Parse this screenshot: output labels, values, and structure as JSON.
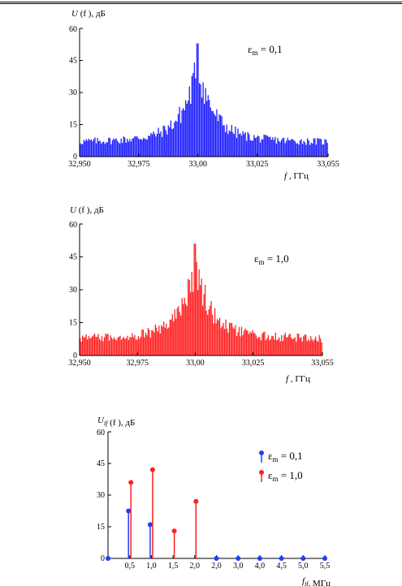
{
  "chart_data": [
    {
      "type": "bar",
      "ylabel": "U(f), дБ",
      "xlabel": "f, ГГц",
      "xlim": [
        32.95,
        33.055
      ],
      "ylim": [
        0,
        60
      ],
      "xticks": [
        "32,950",
        "32,975",
        "33,00",
        "33,025",
        "33,055"
      ],
      "yticks": [
        "0",
        "15",
        "30",
        "45",
        "60"
      ],
      "series": [
        {
          "color": "#1f1fff",
          "peak_x": 33.0,
          "peak_y": 53,
          "floor_y": 7,
          "bins": 200
        }
      ],
      "annotation": "ε_m = 0,1"
    },
    {
      "type": "bar",
      "ylabel": "U(f), дБ",
      "xlabel": "f, ГГц",
      "xlim": [
        32.95,
        33.055
      ],
      "ylim": [
        0,
        60
      ],
      "xticks": [
        "32,950",
        "32,975",
        "33,00",
        "33,025",
        "33,055"
      ],
      "yticks": [
        "0",
        "15",
        "30",
        "45",
        "60"
      ],
      "series": [
        {
          "color": "#ff2020",
          "peak_x": 33.0,
          "peak_y": 51,
          "floor_y": 8,
          "bins": 200
        }
      ],
      "annotation": "ε_m = 1,0"
    },
    {
      "type": "scatter",
      "ylabel": "U_if(f), дБ",
      "xlabel": "f_if, МГц",
      "ylim": [
        0,
        60
      ],
      "categories": [
        "",
        "0,5",
        "1,0",
        "1,5",
        "2,0",
        "2,0",
        "3,0",
        "4,0",
        "4,5",
        "5,0",
        "5,5"
      ],
      "yticks": [
        "0",
        "15",
        "30",
        "45",
        "60"
      ],
      "series": [
        {
          "name": "ε_m = 0,1",
          "color": "#1f3fff",
          "values": [
            0,
            22.5,
            16,
            null,
            null,
            0,
            0,
            0,
            0,
            0,
            0
          ]
        },
        {
          "name": "ε_m = 1,0",
          "color": "#ff2020",
          "values": [
            null,
            36,
            42,
            13,
            27,
            null,
            null,
            null,
            null,
            null,
            null
          ]
        }
      ]
    }
  ]
}
